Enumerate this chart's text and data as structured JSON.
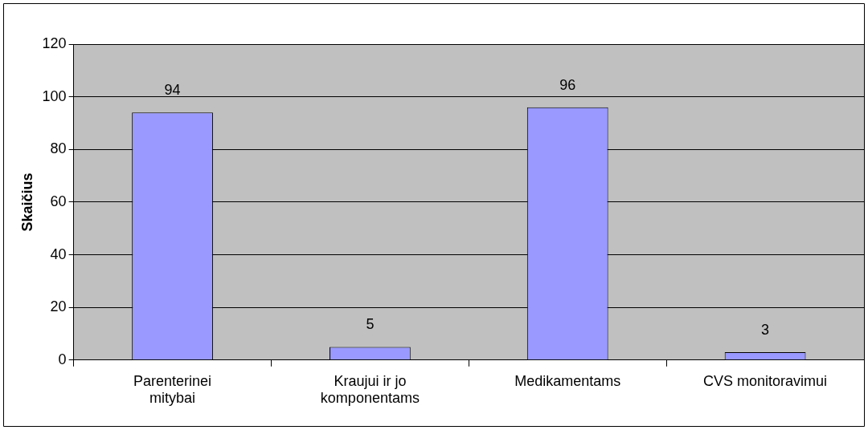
{
  "chart_data": {
    "type": "bar",
    "ylabel": "Skaičius",
    "categories": [
      "Parenterinei mitybai",
      "Kraujui ir jo komponentams",
      "Medikamentams",
      "CVS monitoravimui"
    ],
    "values": [
      94,
      5,
      96,
      3
    ],
    "color": "#9999ff",
    "ylim": [
      0,
      120
    ],
    "yticks": [
      0,
      20,
      40,
      60,
      80,
      100,
      120
    ],
    "grid": "y",
    "data_labels": true,
    "legend": false
  }
}
